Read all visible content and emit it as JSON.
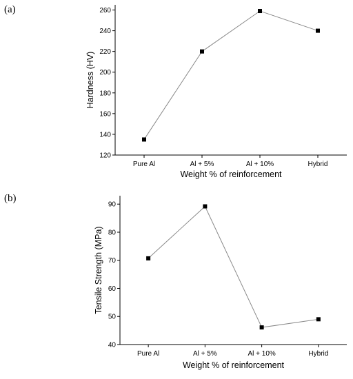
{
  "panels": [
    {
      "label": "(a)",
      "chart_data": {
        "type": "line",
        "categories": [
          "Pure Al",
          "Al + 5%",
          "Al + 10%",
          "Hybrid"
        ],
        "values": [
          135,
          220,
          259,
          240
        ],
        "xlabel": "Weight % of reinforcement",
        "ylabel": "Hardness (HV)",
        "ylim": [
          120,
          265
        ],
        "yticks": [
          120,
          140,
          160,
          180,
          200,
          220,
          240,
          260
        ],
        "marker": "square",
        "line_color": "#8a8a8a",
        "marker_color": "#000000",
        "grid": false,
        "legend": "none"
      }
    },
    {
      "label": "(b)",
      "chart_data": {
        "type": "line",
        "categories": [
          "Pure Al",
          "Al + 5%",
          "Al + 10%",
          "Hybrid"
        ],
        "values": [
          70.7,
          89.2,
          46.1,
          49.0
        ],
        "xlabel": "Weight % of reinforcement",
        "ylabel": "Tensile Strength (MPa)",
        "ylim": [
          40,
          93
        ],
        "yticks": [
          40,
          50,
          60,
          70,
          80,
          90
        ],
        "marker": "square",
        "line_color": "#8a8a8a",
        "marker_color": "#000000",
        "grid": false,
        "legend": "none"
      }
    }
  ]
}
